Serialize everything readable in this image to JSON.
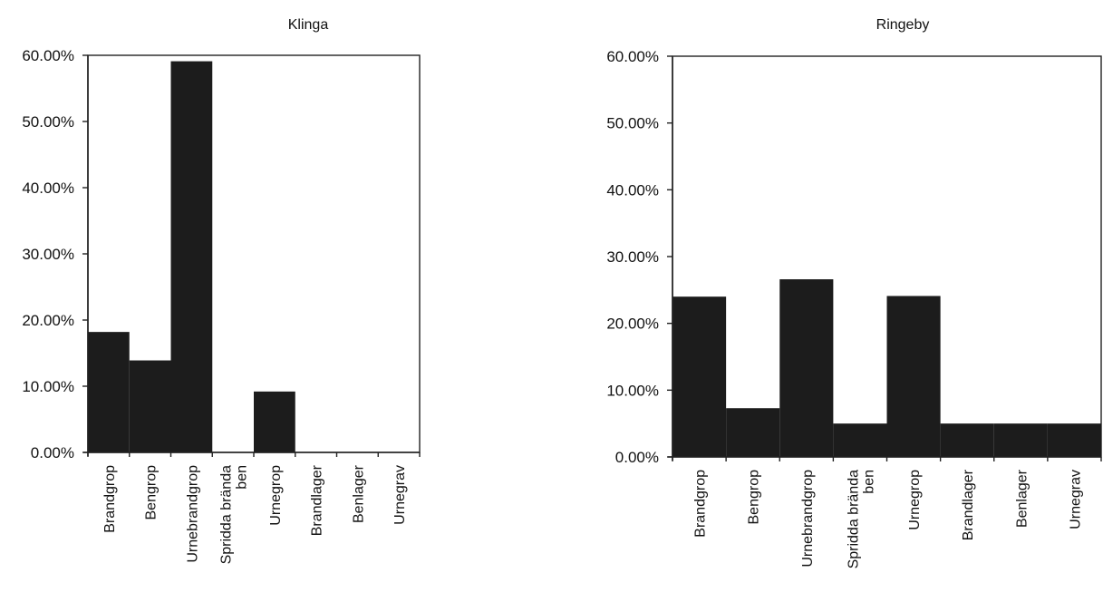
{
  "chart_data": [
    {
      "type": "bar",
      "title": "Klinga",
      "categories": [
        "Brandgrop",
        "Bengrop",
        "Urnebrandgrop",
        "Spridda brända ben",
        "Urnegrop",
        "Brandlager",
        "Benlager",
        "Urnegrav"
      ],
      "category_lines": [
        [
          "Brandgrop"
        ],
        [
          "Bengrop"
        ],
        [
          "Urnebrandgrop"
        ],
        [
          "Spridda brända",
          "ben"
        ],
        [
          "Urnegrop"
        ],
        [
          "Brandlager"
        ],
        [
          "Benlager"
        ],
        [
          "Urnegrav"
        ]
      ],
      "values": [
        18.2,
        13.9,
        59.1,
        0,
        9.2,
        0,
        0,
        0
      ],
      "yticks": [
        0,
        10,
        20,
        30,
        40,
        50,
        60
      ],
      "ytick_labels": [
        "0.00%",
        "10.00%",
        "20.00%",
        "30.00%",
        "40.00%",
        "50.00%",
        "60.00%"
      ],
      "ylim": [
        0,
        60
      ],
      "bar_color": "#1c1c1c",
      "grid": false,
      "legend": false
    },
    {
      "type": "bar",
      "title": "Ringeby",
      "categories": [
        "Brandgrop",
        "Bengrop",
        "Urnebrandgrop",
        "Spridda brända ben",
        "Urnegrop",
        "Brandlager",
        "Benlager",
        "Urnegrav"
      ],
      "category_lines": [
        [
          "Brandgrop"
        ],
        [
          "Bengrop"
        ],
        [
          "Urnebrandgrop"
        ],
        [
          "Spridda brända",
          "ben"
        ],
        [
          "Urnegrop"
        ],
        [
          "Brandlager"
        ],
        [
          "Benlager"
        ],
        [
          "Urnegrav"
        ]
      ],
      "values": [
        24.0,
        7.3,
        26.6,
        5.0,
        24.1,
        5.0,
        5.0,
        5.0
      ],
      "yticks": [
        0,
        10,
        20,
        30,
        40,
        50,
        60
      ],
      "ytick_labels": [
        "0.00%",
        "10.00%",
        "20.00%",
        "30.00%",
        "40.00%",
        "50.00%",
        "60.00%"
      ],
      "ylim": [
        0,
        60
      ],
      "bar_color": "#1c1c1c",
      "grid": false,
      "legend": false
    }
  ]
}
